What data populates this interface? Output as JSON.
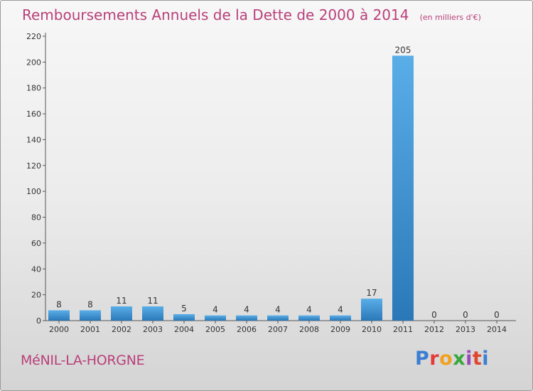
{
  "header": {
    "title": "Remboursements Annuels de la Dette de 2000 à 2014",
    "unit": "(en milliers d'€)"
  },
  "footer": {
    "commune": "MéNIL-LA-HORGNE",
    "logo_text": "Proxiti",
    "logo_colors": [
      "#3b7ed2",
      "#e53a3a",
      "#f0a21f",
      "#38a83a",
      "#9b48b8",
      "#e0462d"
    ]
  },
  "colors": {
    "title": "#b8407a",
    "bar_light": "#5aaee8",
    "bar_dark": "#2a78b8",
    "axis": "#555555",
    "text": "#333333"
  },
  "chart_data": {
    "type": "bar",
    "title": "Remboursements Annuels de la Dette de 2000 à 2014",
    "xlabel": "",
    "ylabel": "",
    "ylim": [
      0,
      220
    ],
    "yticks": [
      0,
      20,
      40,
      60,
      80,
      100,
      120,
      140,
      160,
      180,
      200,
      220
    ],
    "grid": false,
    "categories": [
      "2000",
      "2001",
      "2002",
      "2003",
      "2004",
      "2005",
      "2006",
      "2007",
      "2008",
      "2009",
      "2010",
      "2011",
      "2012",
      "2013",
      "2014"
    ],
    "values": [
      8,
      8,
      11,
      11,
      5,
      4,
      4,
      4,
      4,
      4,
      17,
      205,
      0,
      0,
      0
    ]
  }
}
